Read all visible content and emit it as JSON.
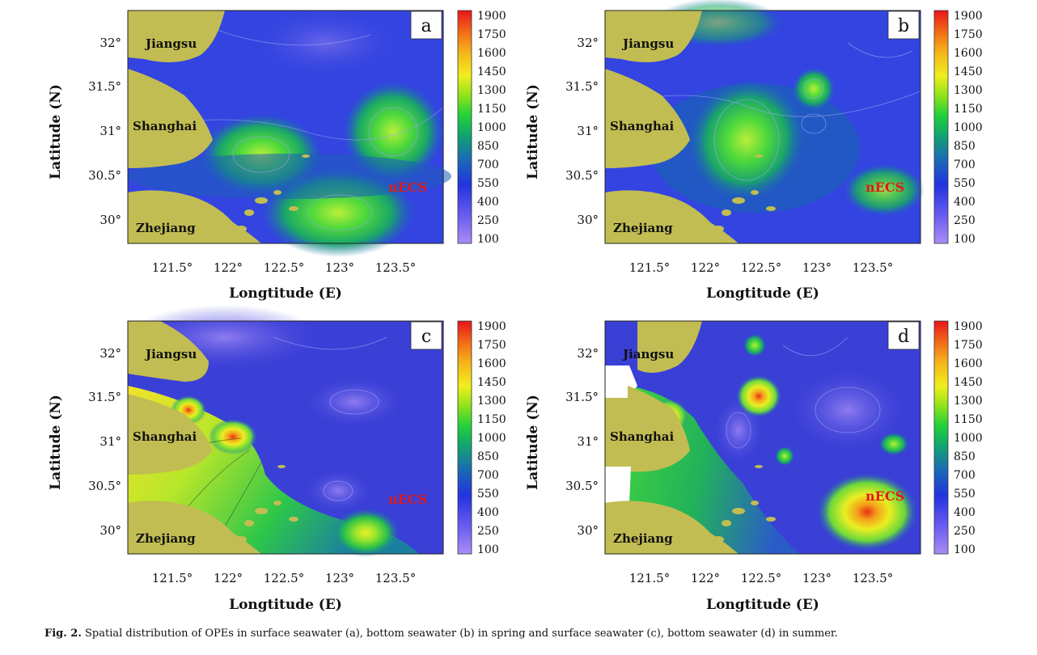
{
  "caption": {
    "label": "Fig. 2.",
    "text": "Spatial distribution of OPEs in surface seawater (a), bottom seawater (b) in spring and surface seawater (c), bottom seawater (d) in summer."
  },
  "axes": {
    "xlabel": "Longtitude (E)",
    "ylabel": "Latitude (N)",
    "x_ticks": [
      "121.5°",
      "122°",
      "122.5°",
      "123°",
      "123.5°"
    ],
    "y_ticks": [
      "32°",
      "31.5°",
      "31°",
      "30.5°",
      "30°"
    ]
  },
  "place_labels": {
    "jiangsu": "Jiangsu",
    "shanghai": "Shanghai",
    "zhejiang": "Zhejiang",
    "region": "nECS"
  },
  "colorbar": {
    "ticks": [
      "1900",
      "1750",
      "1600",
      "1450",
      "1300",
      "1150",
      "1000",
      "850",
      "700",
      "550",
      "400",
      "250",
      "100"
    ]
  },
  "panels": [
    {
      "letter": "a",
      "background": "#3344e0",
      "hotspots": [
        {
          "lon": 122.3,
          "lat": 30.75,
          "value": 950
        },
        {
          "lon": 123.5,
          "lat": 31.0,
          "value": 1000
        },
        {
          "lon": 122.95,
          "lat": 30.1,
          "value": 900
        }
      ]
    },
    {
      "letter": "b",
      "background": "#3344e0",
      "hotspots": [
        {
          "lon": 122.4,
          "lat": 31.0,
          "value": 950
        },
        {
          "lon": 123.0,
          "lat": 31.45,
          "value": 850
        },
        {
          "lon": 123.7,
          "lat": 30.35,
          "value": 650
        }
      ]
    },
    {
      "letter": "c",
      "background": "#3a3fd6",
      "hotspots": [
        {
          "lon": 122.05,
          "lat": 31.05,
          "value": 1400
        },
        {
          "lon": 121.6,
          "lat": 31.35,
          "value": 1500
        },
        {
          "lon": 123.2,
          "lat": 30.0,
          "value": 950
        }
      ]
    },
    {
      "letter": "d",
      "background": "#3a3fd6",
      "hotspots": [
        {
          "lon": 122.5,
          "lat": 31.5,
          "value": 1300
        },
        {
          "lon": 123.5,
          "lat": 30.2,
          "value": 1250
        },
        {
          "lon": 121.7,
          "lat": 31.3,
          "value": 1300
        }
      ]
    }
  ]
}
